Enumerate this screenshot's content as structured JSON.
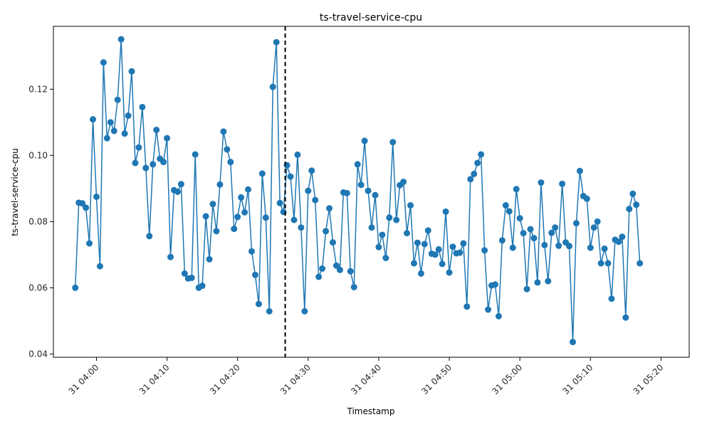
{
  "chart_data": {
    "type": "line",
    "title": "ts-travel-service-cpu",
    "xlabel": "Timestamp",
    "ylabel": "ts-travel-service-cpu",
    "start_time": "03:57",
    "interval_minutes": 0.5,
    "ylim": [
      0.039,
      0.139
    ],
    "x_ticks": [
      {
        "minute": 240,
        "label": "31 04:00"
      },
      {
        "minute": 250,
        "label": "31 04:10"
      },
      {
        "minute": 260,
        "label": "31 04:20"
      },
      {
        "minute": 270,
        "label": "31 04:30"
      },
      {
        "minute": 280,
        "label": "31 04:40"
      },
      {
        "minute": 290,
        "label": "31 04:50"
      },
      {
        "minute": 300,
        "label": "31 05:00"
      },
      {
        "minute": 310,
        "label": "31 05:10"
      },
      {
        "minute": 320,
        "label": "31 05:20"
      }
    ],
    "y_ticks": [
      0.04,
      0.06,
      0.08,
      0.1,
      0.12
    ],
    "y_tick_labels": [
      "0.04",
      "0.06",
      "0.08",
      "0.10",
      "0.12"
    ],
    "marker_minute": 266.75,
    "series": [
      {
        "name": "ts-travel-service-cpu",
        "color": "#1f77b4",
        "values": [
          0.06,
          0.0857,
          0.0855,
          0.0842,
          0.0734,
          0.1109,
          0.0875,
          0.0665,
          0.1281,
          0.1052,
          0.11,
          0.1074,
          0.1168,
          0.1351,
          0.1066,
          0.112,
          0.1254,
          0.0977,
          0.1024,
          0.1146,
          0.0962,
          0.0756,
          0.0973,
          0.1077,
          0.099,
          0.098,
          0.1052,
          0.0693,
          0.0895,
          0.089,
          0.0913,
          0.0643,
          0.0628,
          0.063,
          0.1003,
          0.06,
          0.0606,
          0.0816,
          0.0686,
          0.0853,
          0.0771,
          0.0912,
          0.1072,
          0.1018,
          0.098,
          0.0778,
          0.0814,
          0.0873,
          0.0828,
          0.0897,
          0.071,
          0.0639,
          0.0551,
          0.0945,
          0.0812,
          0.0529,
          0.1207,
          0.1342,
          0.0856,
          0.0829,
          0.097,
          0.0936,
          0.0805,
          0.1002,
          0.0782,
          0.0529,
          0.0893,
          0.0954,
          0.0865,
          0.0633,
          0.0658,
          0.0771,
          0.084,
          0.0737,
          0.0667,
          0.0654,
          0.0888,
          0.0886,
          0.065,
          0.0602,
          0.0973,
          0.0911,
          0.1044,
          0.0893,
          0.0782,
          0.088,
          0.0723,
          0.076,
          0.069,
          0.0812,
          0.104,
          0.0805,
          0.091,
          0.092,
          0.0765,
          0.0849,
          0.0674,
          0.0736,
          0.0643,
          0.0732,
          0.0773,
          0.0703,
          0.07,
          0.0716,
          0.0672,
          0.083,
          0.0646,
          0.0724,
          0.0704,
          0.0706,
          0.0734,
          0.0543,
          0.0928,
          0.0944,
          0.0977,
          0.1003,
          0.0713,
          0.0534,
          0.0607,
          0.061,
          0.0514,
          0.0743,
          0.0849,
          0.0831,
          0.0721,
          0.0898,
          0.081,
          0.0765,
          0.0596,
          0.0777,
          0.075,
          0.0616,
          0.0918,
          0.0729,
          0.062,
          0.0766,
          0.0782,
          0.0727,
          0.0914,
          0.0737,
          0.0726,
          0.0436,
          0.0795,
          0.0953,
          0.0877,
          0.0869,
          0.0721,
          0.0782,
          0.08,
          0.0674,
          0.0718,
          0.0674,
          0.0567,
          0.0745,
          0.0739,
          0.0754,
          0.051,
          0.0838,
          0.0884,
          0.0851,
          0.0674
        ]
      }
    ]
  }
}
